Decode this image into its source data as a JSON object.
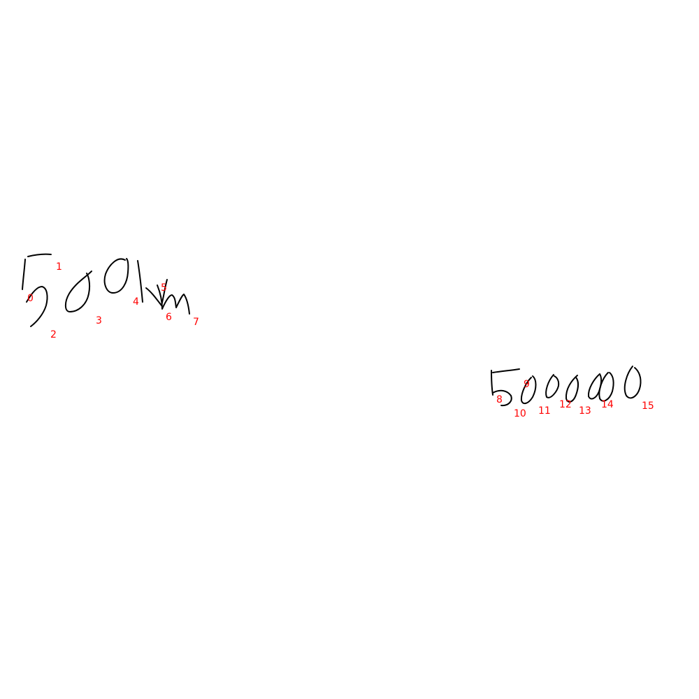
{
  "ink_color": "#000000",
  "label_color": "#ff0000",
  "stroke_labels": [
    "0",
    "1",
    "2",
    "3",
    "4",
    "5",
    "6",
    "7",
    "8",
    "9",
    "10",
    "11",
    "12",
    "13",
    "14",
    "15"
  ]
}
